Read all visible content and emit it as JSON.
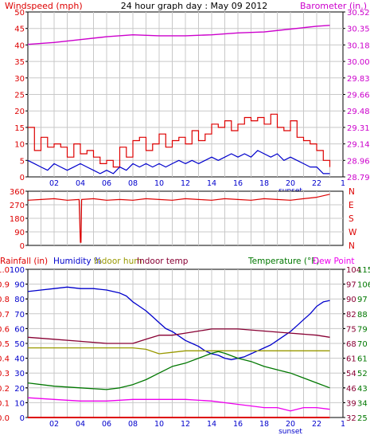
{
  "colors": {
    "wind": "#dd0000",
    "gust_line": "#dd0000",
    "avg_wind": "#0000cc",
    "barometer": "#cc00cc",
    "wind_dir": "#dd0000",
    "humidity": "#0000cc",
    "indoor_hum": "#999900",
    "indoor_temp": "#880033",
    "temperature": "#007700",
    "dew_point": "#ee00ee",
    "rainfall": "#dd0000",
    "grid": "#c8c8c8",
    "black": "#000000"
  },
  "top": {
    "title": "24 hour graph day : May 09 2012",
    "left_label": "Windspeed (mph)",
    "right_label": "Barometer (in.)"
  },
  "mid": {
    "compass": [
      "N",
      "W",
      "S",
      "E",
      "N"
    ]
  },
  "bottom": {
    "legend": {
      "rainfall": "Rainfall (in)",
      "humidity": "Humidity %",
      "indoor_hum": "Indoor hum",
      "indoor_temp": "Indoor temp",
      "temperature": "Temperature (°F)",
      "dew_point": "Dew Point"
    }
  },
  "x_labels": [
    "02",
    "04",
    "06",
    "08",
    "10",
    "12",
    "14",
    "16",
    "18",
    "20",
    "22"
  ],
  "sunset_label": "sunset",
  "chart_data": [
    {
      "type": "line",
      "title": "24 hour graph day : May 09 2012",
      "xlabel": "",
      "x_range": [
        0,
        24
      ],
      "x_ticks": [
        "02",
        "04",
        "06",
        "08",
        "10",
        "12",
        "14",
        "16",
        "18",
        "20",
        "22"
      ],
      "y_left": {
        "label": "Windspeed (mph)",
        "range": [
          0,
          50
        ],
        "ticks": [
          "0",
          "5",
          "10",
          "15",
          "20",
          "25",
          "30",
          "35",
          "40",
          "45",
          "50"
        ]
      },
      "y_right": {
        "label": "Barometer (in.)",
        "range": [
          28.79,
          30.52
        ],
        "ticks": [
          "28.79",
          "28.96",
          "29.14",
          "29.31",
          "29.48",
          "29.66",
          "29.83",
          "30.00",
          "30.18",
          "30.35",
          "30.52"
        ]
      },
      "grid": true,
      "series": [
        {
          "key": "gust",
          "axis": "left",
          "x": [
            0,
            0.5,
            1,
            1.5,
            2,
            2.5,
            3,
            3.5,
            4,
            4.5,
            5,
            5.5,
            6,
            6.5,
            7,
            7.5,
            8,
            8.5,
            9,
            9.5,
            10,
            10.5,
            11,
            11.5,
            12,
            12.5,
            13,
            13.5,
            14,
            14.5,
            15,
            15.5,
            16,
            16.5,
            17,
            17.5,
            18,
            18.5,
            19,
            19.5,
            20,
            20.5,
            21,
            21.5,
            22,
            22.5,
            23
          ],
          "values": [
            15,
            8,
            12,
            9,
            10,
            9,
            6,
            10,
            7,
            8,
            6,
            4,
            5,
            3,
            9,
            6,
            11,
            12,
            8,
            10,
            13,
            9,
            11,
            12,
            10,
            14,
            11,
            13,
            16,
            15,
            17,
            14,
            16,
            18,
            17,
            18,
            16,
            19,
            15,
            14,
            17,
            12,
            11,
            10,
            8,
            5,
            3
          ]
        },
        {
          "key": "avg_wind",
          "axis": "left",
          "x": [
            0,
            0.5,
            1,
            1.5,
            2,
            2.5,
            3,
            3.5,
            4,
            4.5,
            5,
            5.5,
            6,
            6.5,
            7,
            7.5,
            8,
            8.5,
            9,
            9.5,
            10,
            10.5,
            11,
            11.5,
            12,
            12.5,
            13,
            13.5,
            14,
            14.5,
            15,
            15.5,
            16,
            16.5,
            17,
            17.5,
            18,
            18.5,
            19,
            19.5,
            20,
            20.5,
            21,
            21.5,
            22,
            22.5,
            23
          ],
          "values": [
            5,
            4,
            3,
            2,
            4,
            3,
            2,
            3,
            4,
            3,
            2,
            1,
            2,
            1,
            3,
            2,
            4,
            3,
            4,
            3,
            4,
            3,
            4,
            5,
            4,
            5,
            4,
            5,
            6,
            5,
            6,
            7,
            6,
            7,
            6,
            8,
            7,
            6,
            7,
            5,
            6,
            5,
            4,
            3,
            3,
            1,
            1
          ]
        },
        {
          "key": "barometer",
          "axis": "right",
          "x": [
            0,
            2,
            4,
            6,
            8,
            10,
            12,
            14,
            16,
            18,
            20,
            22,
            23
          ],
          "values": [
            30.18,
            30.2,
            30.23,
            30.26,
            30.28,
            30.27,
            30.27,
            30.28,
            30.3,
            30.31,
            30.34,
            30.37,
            30.38
          ]
        }
      ]
    },
    {
      "type": "line",
      "xlabel": "",
      "x_range": [
        0,
        24
      ],
      "y_left": {
        "label": "",
        "range": [
          0,
          360
        ],
        "ticks": [
          "0",
          "90",
          "180",
          "270",
          "360"
        ]
      },
      "y_right": {
        "ticks": [
          "N",
          "W",
          "S",
          "E",
          "N"
        ]
      },
      "series": [
        {
          "key": "wind_dir",
          "x": [
            0,
            1,
            2,
            3,
            3.9,
            4,
            4.05,
            4.1,
            5,
            6,
            7,
            8,
            9,
            10,
            11,
            12,
            13,
            14,
            15,
            16,
            17,
            18,
            19,
            20,
            21,
            22,
            23
          ],
          "values": [
            300,
            305,
            310,
            300,
            305,
            20,
            20,
            305,
            310,
            300,
            305,
            300,
            310,
            305,
            300,
            310,
            305,
            300,
            310,
            305,
            300,
            310,
            305,
            300,
            310,
            320,
            340
          ]
        }
      ]
    },
    {
      "type": "line",
      "xlabel": "",
      "x_range": [
        0,
        24
      ],
      "y_left_rain": {
        "label": "Rainfall (in)",
        "range": [
          0,
          1.0
        ],
        "ticks": [
          "0.0",
          "0.1",
          "0.2",
          "0.3",
          "0.4",
          "0.5",
          "0.6",
          "0.7",
          "0.8",
          "0.9",
          "1.0"
        ]
      },
      "y_left_hum": {
        "label": "Humidity %",
        "range": [
          0,
          100
        ],
        "ticks": [
          "0",
          "10",
          "20",
          "30",
          "40",
          "50",
          "60",
          "70",
          "80",
          "90",
          "100"
        ]
      },
      "y_right_indoor": {
        "label": "Indoor temp",
        "range": [
          32,
          104
        ],
        "ticks": [
          "32",
          "39",
          "46",
          "54",
          "61",
          "68",
          "75",
          "82",
          "90",
          "97",
          "104"
        ]
      },
      "y_right_outdoor": {
        "label": "Temperature (°F)",
        "range": [
          25,
          115
        ],
        "ticks": [
          "25",
          "34",
          "43",
          "52",
          "61",
          "70",
          "79",
          "88",
          "97",
          "106",
          "115"
        ]
      },
      "grid": true,
      "series": [
        {
          "key": "humidity",
          "name": "Humidity %",
          "axis": "hum",
          "x": [
            0,
            1,
            2,
            3,
            4,
            5,
            6,
            7,
            7.5,
            8,
            8.5,
            9,
            9.5,
            10,
            10.5,
            11,
            11.5,
            12,
            12.5,
            13,
            13.5,
            14,
            14.5,
            15,
            15.5,
            16,
            16.5,
            17,
            17.5,
            18,
            18.5,
            19,
            19.5,
            20,
            20.5,
            21,
            21.5,
            22,
            22.5,
            23
          ],
          "values": [
            85,
            86,
            87,
            88,
            87,
            87,
            86,
            84,
            82,
            78,
            75,
            72,
            68,
            64,
            60,
            58,
            55,
            52,
            50,
            48,
            45,
            43,
            42,
            40,
            39,
            40,
            41,
            43,
            45,
            47,
            49,
            52,
            55,
            58,
            62,
            66,
            70,
            75,
            78,
            79
          ]
        },
        {
          "key": "indoor_hum",
          "name": "Indoor hum",
          "axis": "hum",
          "x": [
            0,
            2,
            4,
            6,
            8,
            9,
            10,
            11,
            12,
            14,
            16,
            18,
            20,
            22,
            23
          ],
          "values": [
            47,
            47,
            47,
            47,
            47,
            46,
            43,
            44,
            45,
            45,
            45,
            45,
            45,
            45,
            45
          ]
        },
        {
          "key": "indoor_temp",
          "name": "Indoor temp",
          "axis": "indoor",
          "x": [
            0,
            2,
            4,
            6,
            8,
            9,
            10,
            11,
            12,
            13,
            14,
            16,
            18,
            20,
            22,
            23
          ],
          "values": [
            71,
            70,
            69,
            68,
            68,
            70,
            72,
            72,
            73,
            74,
            75,
            75,
            74,
            73,
            72,
            71
          ]
        },
        {
          "key": "temperature",
          "name": "Temperature (°F)",
          "axis": "outdoor",
          "x": [
            0,
            2,
            4,
            6,
            7,
            8,
            9,
            10,
            11,
            12,
            13,
            14,
            14.5,
            15,
            16,
            17,
            18,
            19,
            20,
            21,
            22,
            23
          ],
          "values": [
            46,
            44,
            43,
            42,
            43,
            45,
            48,
            52,
            56,
            58,
            61,
            64,
            65,
            64,
            61,
            59,
            56,
            54,
            52,
            49,
            46,
            43
          ]
        },
        {
          "key": "dew_point",
          "name": "Dew Point",
          "axis": "outdoor",
          "x": [
            0,
            2,
            4,
            6,
            8,
            10,
            12,
            14,
            16,
            17,
            18,
            19,
            20,
            21,
            22,
            23
          ],
          "values": [
            37,
            36,
            35,
            35,
            36,
            36,
            36,
            35,
            33,
            32,
            31,
            31,
            29,
            31,
            31,
            30
          ]
        },
        {
          "key": "rainfall",
          "name": "Rainfall (in)",
          "axis": "rain",
          "x": [
            0,
            23
          ],
          "values": [
            0.0,
            0.0
          ]
        }
      ]
    }
  ]
}
